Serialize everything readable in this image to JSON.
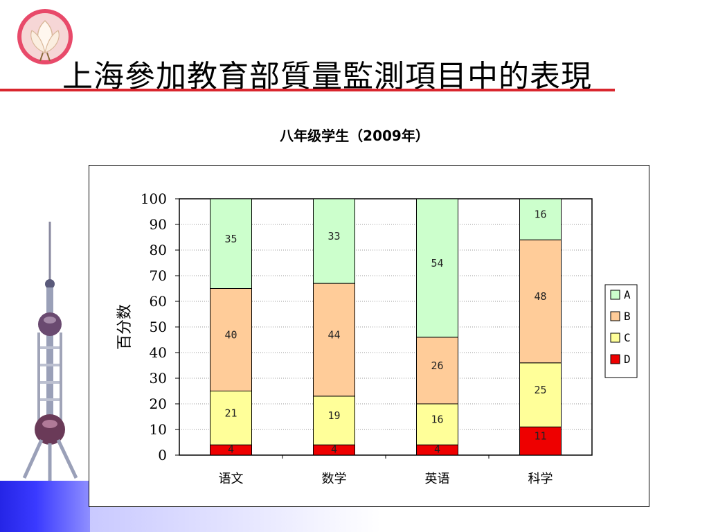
{
  "slide": {
    "title": "上海參加教育部質量監測項目中的表現"
  },
  "chart_data": {
    "type": "bar",
    "stacked": true,
    "title": "八年级学生（2009年）",
    "ylabel": "百分数",
    "xlabel": "",
    "ylim": [
      0,
      100
    ],
    "yticks": [
      0,
      10,
      20,
      30,
      40,
      50,
      60,
      70,
      80,
      90,
      100
    ],
    "grid": true,
    "legend_position": "right",
    "categories": [
      "语文",
      "数学",
      "英语",
      "科学"
    ],
    "series": [
      {
        "name": "D",
        "values": [
          4,
          4,
          4,
          11
        ],
        "color": "#ee0000"
      },
      {
        "name": "C",
        "values": [
          21,
          19,
          16,
          25
        ],
        "color": "#ffff99"
      },
      {
        "name": "B",
        "values": [
          40,
          44,
          26,
          48
        ],
        "color": "#ffcc99"
      },
      {
        "name": "A",
        "values": [
          35,
          33,
          54,
          16
        ],
        "color": "#ccffcc"
      }
    ]
  }
}
